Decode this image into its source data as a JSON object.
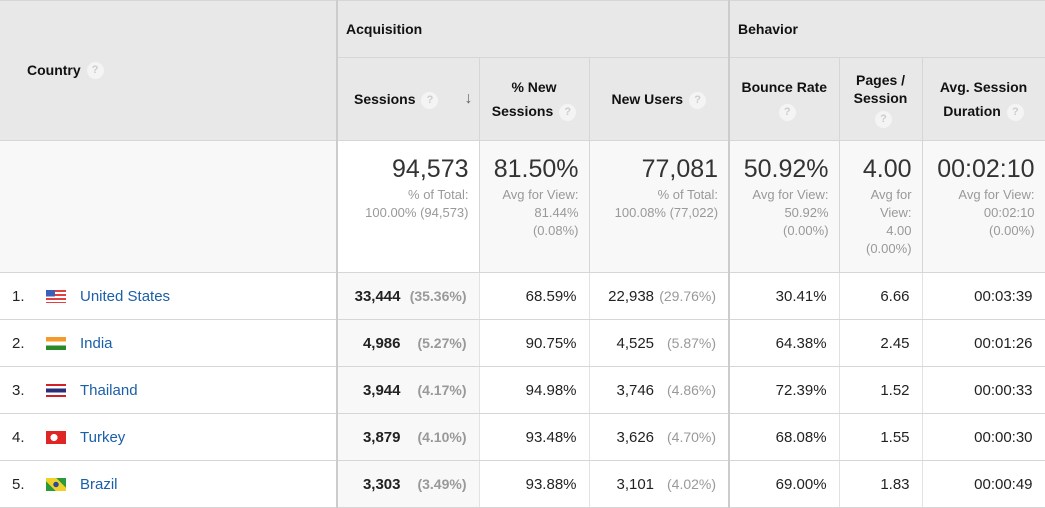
{
  "header": {
    "country": "Country",
    "acquisition": "Acquisition",
    "behavior": "Behavior",
    "sessions": "Sessions",
    "pct_new_sessions": "% New Sessions",
    "new_users": "New Users",
    "bounce_rate": "Bounce Rate",
    "pages_session": "Pages / Session",
    "avg_session_duration": "Avg. Session Duration",
    "help": "?",
    "sort_icon": "arrow-down"
  },
  "summary": {
    "sessions": {
      "value": "94,573",
      "l1": "% of Total:",
      "l2": "100.00% (94,573)"
    },
    "pct_new": {
      "value": "81.50%",
      "l1": "Avg for View:",
      "l2": "81.44%",
      "l3": "(0.08%)"
    },
    "new_users": {
      "value": "77,081",
      "l1": "% of Total:",
      "l2": "100.08% (77,022)"
    },
    "bounce": {
      "value": "50.92%",
      "l1": "Avg for View:",
      "l2": "50.92%",
      "l3": "(0.00%)"
    },
    "pages": {
      "value": "4.00",
      "l1": "Avg for",
      "l2": "View:",
      "l3": "4.00",
      "l4": "(0.00%)"
    },
    "duration": {
      "value": "00:02:10",
      "l1": "Avg for View:",
      "l2": "00:02:10",
      "l3": "(0.00%)"
    }
  },
  "rows": [
    {
      "rank": "1.",
      "country": "United States",
      "flag": "us",
      "sessions": "33,444",
      "sessions_pct": "(35.36%)",
      "pct_new": "68.59%",
      "new_users": "22,938",
      "new_users_pct": "(29.76%)",
      "bounce": "30.41%",
      "pages": "6.66",
      "duration": "00:03:39"
    },
    {
      "rank": "2.",
      "country": "India",
      "flag": "in",
      "sessions": "4,986",
      "sessions_pct": "(5.27%)",
      "pct_new": "90.75%",
      "new_users": "4,525",
      "new_users_pct": "(5.87%)",
      "bounce": "64.38%",
      "pages": "2.45",
      "duration": "00:01:26"
    },
    {
      "rank": "3.",
      "country": "Thailand",
      "flag": "th",
      "sessions": "3,944",
      "sessions_pct": "(4.17%)",
      "pct_new": "94.98%",
      "new_users": "3,746",
      "new_users_pct": "(4.86%)",
      "bounce": "72.39%",
      "pages": "1.52",
      "duration": "00:00:33"
    },
    {
      "rank": "4.",
      "country": "Turkey",
      "flag": "tr",
      "sessions": "3,879",
      "sessions_pct": "(4.10%)",
      "pct_new": "93.48%",
      "new_users": "3,626",
      "new_users_pct": "(4.70%)",
      "bounce": "68.08%",
      "pages": "1.55",
      "duration": "00:00:30"
    },
    {
      "rank": "5.",
      "country": "Brazil",
      "flag": "br",
      "sessions": "3,303",
      "sessions_pct": "(3.49%)",
      "pct_new": "93.88%",
      "new_users": "3,101",
      "new_users_pct": "(4.02%)",
      "bounce": "69.00%",
      "pages": "1.83",
      "duration": "00:00:49"
    }
  ]
}
